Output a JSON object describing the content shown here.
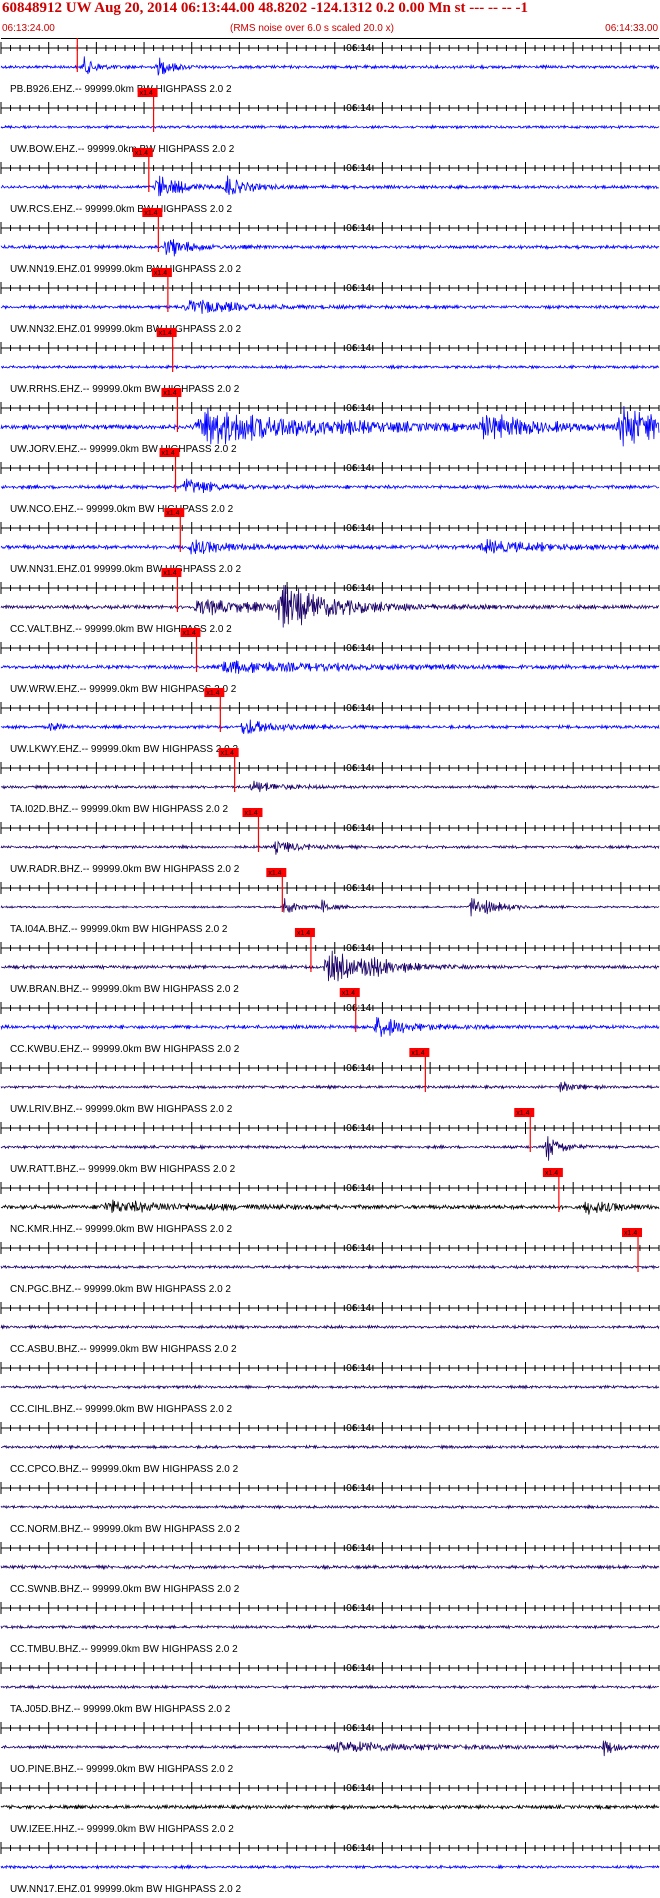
{
  "header": {
    "title": "60848912 UW Aug 20, 2014 06:13:44.00   48.8202 -124.1312  0.2 0.00 Mn st --- -- --   -1",
    "start_time": "06:13:24.00",
    "end_time": "06:14:33.00",
    "noise_note": "(RMS noise over 6.0 s scaled 20.0 x)"
  },
  "colors": {
    "trace_blue": "#0000ff",
    "trace_navy": "#1a0066",
    "trace_black": "#000000",
    "pick": "#ff0000",
    "axis": "#000000"
  },
  "chart_data": {
    "type": "line",
    "title": "",
    "time_start_s": 0,
    "time_end_s": 69,
    "minute_label": "06:14",
    "minute_mark_s": 36,
    "pick_label": "x1.4",
    "series": [
      {
        "name": "PB.B926.EHZ.-- 99999.0km BW  HIGHPASS  2.0  2",
        "pick_s": 8.0,
        "color": "blue",
        "amp": 0.35,
        "bursts": [
          [
            8.5,
            1.2,
            3.0
          ],
          [
            16.2,
            1.5,
            2.4
          ]
        ]
      },
      {
        "name": "UW.BOW.EHZ.-- 99999.0km BW  HIGHPASS  2.0  2",
        "pick_s": 16.0,
        "color": "blue",
        "amp": 0.3,
        "bursts": []
      },
      {
        "name": "UW.RCS.EHZ.-- 99999.0km BW  HIGHPASS  2.0  2",
        "pick_s": 15.5,
        "color": "blue",
        "amp": 0.35,
        "bursts": [
          [
            16.0,
            2.5,
            3.0
          ],
          [
            23.3,
            2.0,
            3.0
          ]
        ]
      },
      {
        "name": "UW.NN19.EHZ.01 99999.0km BW  HIGHPASS  2.0  2",
        "pick_s": 16.5,
        "color": "blue",
        "amp": 0.35,
        "bursts": [
          [
            17.0,
            2.5,
            2.5
          ]
        ]
      },
      {
        "name": "UW.NN32.EHZ.01 99999.0km BW  HIGHPASS  2.0  2",
        "pick_s": 17.5,
        "color": "blue",
        "amp": 0.35,
        "bursts": [
          [
            19.0,
            5.0,
            2.0
          ]
        ]
      },
      {
        "name": "UW.RRHS.EHZ.-- 99999.0km BW  HIGHPASS  2.0  2",
        "pick_s": 18.0,
        "color": "blue",
        "amp": 0.3,
        "bursts": []
      },
      {
        "name": "UW.JORV.EHZ.-- 99999.0km BW  HIGHPASS  2.0  2",
        "pick_s": 18.5,
        "color": "blue",
        "amp": 0.5,
        "bursts": [
          [
            20.0,
            12.0,
            4.5
          ],
          [
            50.0,
            5.0,
            2.8
          ],
          [
            64.5,
            5.0,
            5.0
          ]
        ]
      },
      {
        "name": "UW.NCO.EHZ.-- 99999.0km BW  HIGHPASS  2.0  2",
        "pick_s": 18.3,
        "color": "blue",
        "amp": 0.4,
        "bursts": [
          [
            19.0,
            2.5,
            2.5
          ]
        ]
      },
      {
        "name": "UW.NN31.EHZ.01 99999.0km BW  HIGHPASS  2.0  2",
        "pick_s": 18.8,
        "color": "blue",
        "amp": 0.45,
        "bursts": [
          [
            19.5,
            3.5,
            2.0
          ],
          [
            50.0,
            6.0,
            1.6
          ]
        ]
      },
      {
        "name": "CC.VALT.BHZ.-- 99999.0km BW  HIGHPASS  2.0  2",
        "pick_s": 18.5,
        "color": "navy",
        "amp": 0.4,
        "bursts": [
          [
            20.0,
            6.0,
            2.0
          ],
          [
            28.5,
            6.0,
            5.0
          ]
        ]
      },
      {
        "name": "UW.WRW.EHZ.-- 99999.0km BW  HIGHPASS  2.0  2",
        "pick_s": 20.5,
        "color": "blue",
        "amp": 0.4,
        "bursts": [
          [
            22.0,
            12.0,
            1.5
          ]
        ]
      },
      {
        "name": "UW.LKWY.EHZ.-- 99999.0km BW  HIGHPASS  2.0  2",
        "pick_s": 23.0,
        "color": "blue",
        "amp": 0.35,
        "bursts": [
          [
            25.0,
            3.0,
            2.2
          ],
          [
            5.0,
            1.0,
            1.5
          ]
        ]
      },
      {
        "name": "TA.I02D.BHZ.-- 99999.0km BW  HIGHPASS  2.0  2",
        "pick_s": 24.5,
        "color": "navy",
        "amp": 0.3,
        "bursts": [
          [
            26.0,
            3.0,
            1.5
          ]
        ]
      },
      {
        "name": "UW.RADR.BHZ.-- 99999.0km BW  HIGHPASS  2.0  2",
        "pick_s": 27.0,
        "color": "navy",
        "amp": 0.3,
        "bursts": [
          [
            28.5,
            2.5,
            1.6
          ]
        ]
      },
      {
        "name": "TA.I04A.BHZ.-- 99999.0km BW  HIGHPASS  2.0  2",
        "pick_s": 29.5,
        "color": "navy",
        "amp": 0.2,
        "bursts": [
          [
            29.5,
            1.2,
            2.5
          ],
          [
            33.5,
            1.0,
            2.0
          ],
          [
            49.0,
            2.5,
            3.0
          ]
        ]
      },
      {
        "name": "UW.BRAN.BHZ.-- 99999.0km BW  HIGHPASS  2.0  2",
        "pick_s": 32.5,
        "color": "navy",
        "amp": 0.35,
        "bursts": [
          [
            33.8,
            3.0,
            4.5
          ],
          [
            37.5,
            4.0,
            1.8
          ]
        ]
      },
      {
        "name": "CC.KWBU.EHZ.-- 99999.0km BW  HIGHPASS  2.0  2",
        "pick_s": 37.2,
        "color": "blue",
        "amp": 0.4,
        "bursts": [
          [
            39.0,
            3.0,
            2.8
          ]
        ]
      },
      {
        "name": "UW.LRIV.BHZ.-- 99999.0km BW  HIGHPASS  2.0  2",
        "pick_s": 44.5,
        "color": "navy",
        "amp": 0.3,
        "bursts": [
          [
            58.5,
            1.5,
            1.5
          ]
        ]
      },
      {
        "name": "UW.RATT.BHZ.-- 99999.0km BW  HIGHPASS  2.0  2",
        "pick_s": 55.5,
        "color": "navy",
        "amp": 0.3,
        "bursts": [
          [
            57.0,
            1.5,
            3.5
          ]
        ]
      },
      {
        "name": "NC.KMR.HHZ.-- 99999.0km BW  HIGHPASS  2.0  2",
        "pick_s": 58.5,
        "color": "black",
        "amp": 0.45,
        "bursts": [
          [
            61.0,
            3.0,
            1.8
          ],
          [
            10.0,
            9.0,
            1.4
          ]
        ]
      },
      {
        "name": "CN.PGC.BHZ.-- 99999.0km BW  HIGHPASS  2.0  2",
        "pick_s": 66.8,
        "color": "navy",
        "amp": 0.3,
        "bursts": []
      },
      {
        "name": "CC.ASBU.BHZ.-- 99999.0km BW  HIGHPASS  2.0  2",
        "pick_s": null,
        "color": "navy",
        "amp": 0.3,
        "bursts": []
      },
      {
        "name": "CC.CIHL.BHZ.-- 99999.0km BW  HIGHPASS  2.0  2",
        "pick_s": null,
        "color": "navy",
        "amp": 0.3,
        "bursts": []
      },
      {
        "name": "CC.CPCO.BHZ.-- 99999.0km BW  HIGHPASS  2.0  2",
        "pick_s": null,
        "color": "navy",
        "amp": 0.3,
        "bursts": []
      },
      {
        "name": "CC.NORM.BHZ.-- 99999.0km BW  HIGHPASS  2.0  2",
        "pick_s": null,
        "color": "navy",
        "amp": 0.3,
        "bursts": []
      },
      {
        "name": "CC.SWNB.BHZ.-- 99999.0km BW  HIGHPASS  2.0  2",
        "pick_s": null,
        "color": "navy",
        "amp": 0.35,
        "bursts": []
      },
      {
        "name": "CC.TMBU.BHZ.-- 99999.0km BW  HIGHPASS  2.0  2",
        "pick_s": null,
        "color": "navy",
        "amp": 0.3,
        "bursts": []
      },
      {
        "name": "TA.J05D.BHZ.-- 99999.0km BW  HIGHPASS  2.0  2",
        "pick_s": null,
        "color": "navy",
        "amp": 0.3,
        "bursts": []
      },
      {
        "name": "UO.PINE.BHZ.-- 99999.0km BW  HIGHPASS  2.0  2",
        "pick_s": null,
        "color": "navy",
        "amp": 0.3,
        "bursts": [
          [
            34.0,
            10.0,
            1.4
          ],
          [
            63.0,
            1.2,
            2.0
          ]
        ]
      },
      {
        "name": "UW.IZEE.HHZ.-- 99999.0km BW  HIGHPASS  2.0  2",
        "pick_s": null,
        "color": "black",
        "amp": 0.4,
        "bursts": []
      },
      {
        "name": "UW.NN17.EHZ.01 99999.0km BW  HIGHPASS  2.0  2",
        "pick_s": null,
        "color": "blue",
        "amp": 0.3,
        "bursts": []
      }
    ]
  }
}
